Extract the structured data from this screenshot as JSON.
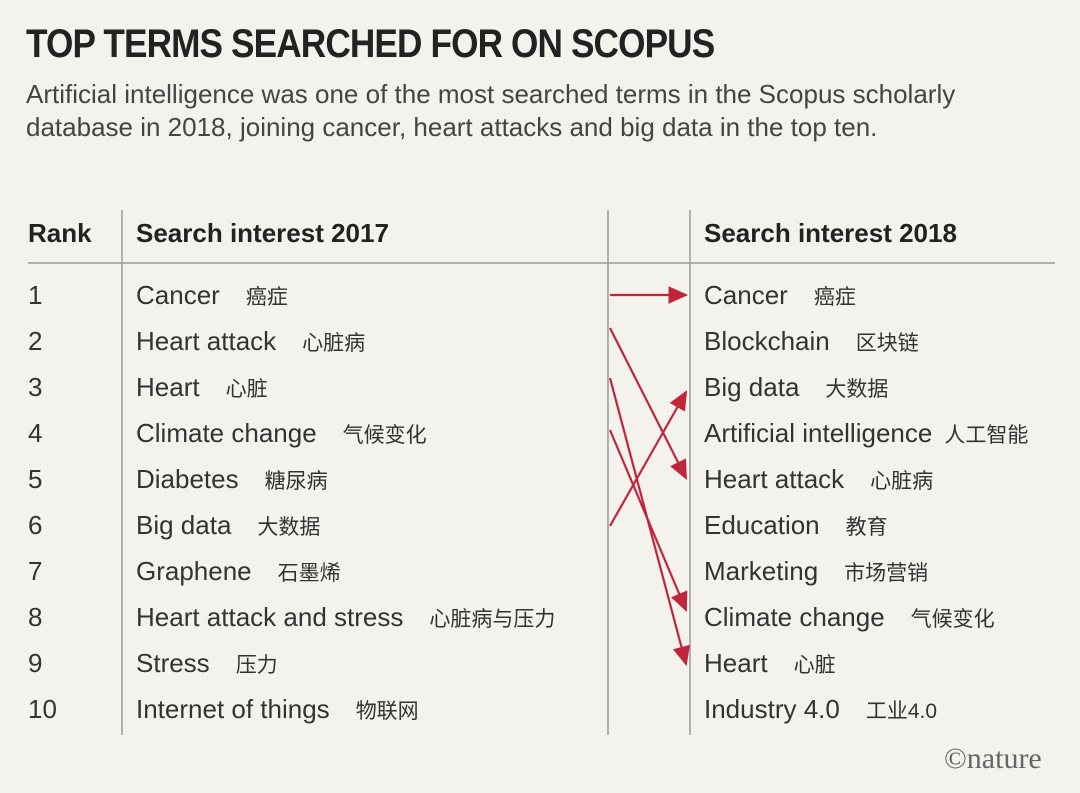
{
  "header": {
    "title": "TOP TERMS SEARCHED FOR ON SCOPUS",
    "subtitle": "Artificial intelligence was one of the most searched terms in the Scopus scholarly database in 2018, joining cancer, heart attacks and big data in the top ten."
  },
  "table": {
    "columns": [
      "Rank",
      "Search interest 2017",
      "Search interest 2018"
    ],
    "rows": [
      {
        "rank": "1",
        "term_2017": "Cancer",
        "zh_2017": "癌症",
        "term_2018": "Cancer",
        "zh_2018": "癌症"
      },
      {
        "rank": "2",
        "term_2017": "Heart attack",
        "zh_2017": "心脏病",
        "term_2018": "Blockchain",
        "zh_2018": "区块链"
      },
      {
        "rank": "3",
        "term_2017": "Heart",
        "zh_2017": "心脏",
        "term_2018": "Big data",
        "zh_2018": "大数据"
      },
      {
        "rank": "4",
        "term_2017": "Climate change",
        "zh_2017": "气候变化",
        "term_2018": "Artificial intelligence",
        "zh_2018": "人工智能"
      },
      {
        "rank": "5",
        "term_2017": "Diabetes",
        "zh_2017": "糖尿病",
        "term_2018": "Heart attack",
        "zh_2018": "心脏病"
      },
      {
        "rank": "6",
        "term_2017": "Big data",
        "zh_2017": "大数据",
        "term_2018": "Education",
        "zh_2018": "教育"
      },
      {
        "rank": "7",
        "term_2017": "Graphene",
        "zh_2017": "石墨烯",
        "term_2018": "Marketing",
        "zh_2018": "市场营销"
      },
      {
        "rank": "8",
        "term_2017": "Heart attack and stress",
        "zh_2017": "心脏病与压力",
        "term_2018": "Climate change",
        "zh_2018": "气候变化"
      },
      {
        "rank": "9",
        "term_2017": "Stress",
        "zh_2017": "压力",
        "term_2018": "Heart",
        "zh_2018": "心脏"
      },
      {
        "rank": "10",
        "term_2017": "Internet of things",
        "zh_2017": "物联网",
        "term_2018": "Industry 4.0",
        "zh_2018": "工业4.0"
      }
    ]
  },
  "footer": {
    "credit": "©nature"
  }
}
